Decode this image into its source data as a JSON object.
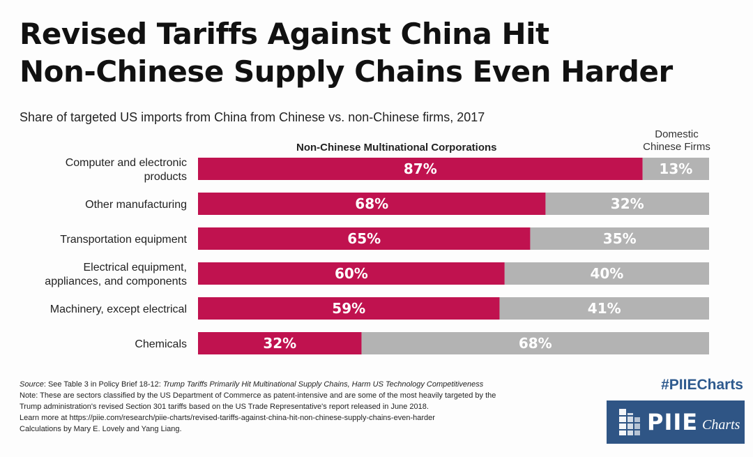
{
  "title_line1": "Revised Tariffs Against China Hit",
  "title_line2": "Non-Chinese Supply Chains Even Harder",
  "subtitle": "Share of targeted US imports from China from Chinese vs. non-Chinese firms, 2017",
  "colors": {
    "non_chinese": "#c0124f",
    "domestic": "#b3b3b3",
    "brand": "#2f5585"
  },
  "chart_data": {
    "type": "bar",
    "orientation": "horizontal",
    "stacked": true,
    "title": "Share of targeted US imports from China from Chinese vs. non-Chinese firms, 2017",
    "xlabel": "",
    "ylabel": "",
    "xlim": [
      0,
      100
    ],
    "categories": [
      [
        "Computer and electronic",
        "products"
      ],
      [
        "Other manufacturing"
      ],
      [
        "Transportation equipment"
      ],
      [
        "Electrical equipment,",
        "appliances, and components"
      ],
      [
        "Machinery, except electrical"
      ],
      [
        "Chemicals"
      ]
    ],
    "series": [
      {
        "name": "Non-Chinese Multinational Corporations",
        "values": [
          87,
          68,
          65,
          60,
          59,
          32
        ]
      },
      {
        "name_line1": "Domestic",
        "name_line2": "Chinese Firms",
        "values": [
          13,
          32,
          35,
          40,
          41,
          68
        ]
      }
    ],
    "value_suffix": "%"
  },
  "notes": {
    "source_label": "Source",
    "source_text": ": See Table 3 in Policy Brief 18-12: ",
    "source_title": "Trump Tariffs Primarily Hit Multinational Supply Chains, Harm US Technology Competitiveness",
    "note_line1": "Note: These are sectors classified by the US Department of Commerce as patent-intensive and are some of the most heavily targeted by the",
    "note_line2": "Trump administration's revised Section 301 tariffs based on the US Trade Representative's report released in June 2018.",
    "learn_more": "Learn more at https://piie.com/research/piie-charts/revised-tariffs-against-china-hit-non-chinese-supply-chains-even-harder",
    "calculations": "Calculations by Mary E. Lovely and Yang Liang."
  },
  "brand": {
    "hashtag": "#PIIECharts",
    "logo_text": "PIIE",
    "logo_sub": "Charts"
  }
}
